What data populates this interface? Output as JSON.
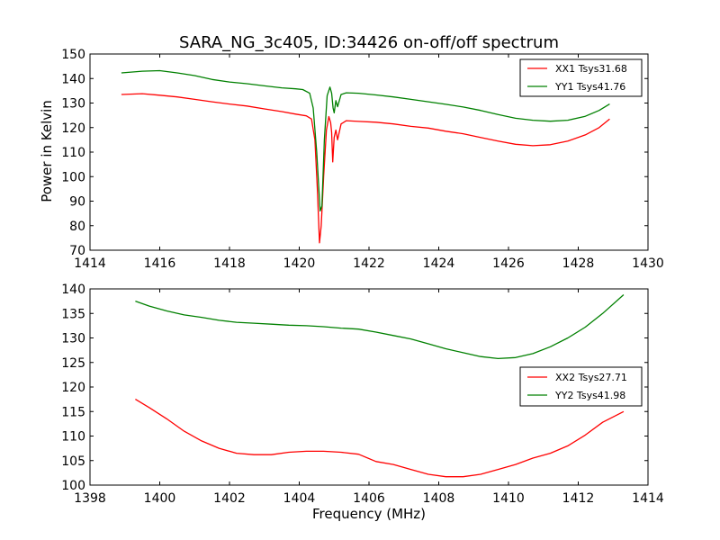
{
  "chart_data": [
    {
      "type": "line",
      "title": "SARA_NG_3c405, ID:34426 on-off/off spectrum",
      "xlabel": "",
      "ylabel": "Power in Kelvin",
      "xlim": [
        1414,
        1430
      ],
      "ylim": [
        70,
        150
      ],
      "xticks": [
        "1414",
        "1416",
        "1418",
        "1420",
        "1422",
        "1424",
        "1426",
        "1428",
        "1430"
      ],
      "yticks": [
        "70",
        "80",
        "90",
        "100",
        "110",
        "120",
        "130",
        "140",
        "150"
      ],
      "legend_position": "top-right",
      "series": [
        {
          "name": "XX1 Tsys31.68",
          "color": "#ff0000",
          "points": [
            [
              1414.9,
              133.5
            ],
            [
              1415.5,
              133.8
            ],
            [
              1416.0,
              133.2
            ],
            [
              1416.5,
              132.5
            ],
            [
              1417.0,
              131.5
            ],
            [
              1417.5,
              130.5
            ],
            [
              1418.0,
              129.6
            ],
            [
              1418.5,
              128.8
            ],
            [
              1419.0,
              127.6
            ],
            [
              1419.5,
              126.5
            ],
            [
              1419.9,
              125.5
            ],
            [
              1420.2,
              124.8
            ],
            [
              1420.35,
              123.5
            ],
            [
              1420.45,
              115
            ],
            [
              1420.52,
              95
            ],
            [
              1420.58,
              73
            ],
            [
              1420.63,
              80
            ],
            [
              1420.7,
              100
            ],
            [
              1420.78,
              119
            ],
            [
              1420.85,
              124.5
            ],
            [
              1420.9,
              122
            ],
            [
              1420.93,
              118
            ],
            [
              1420.96,
              106
            ],
            [
              1421.0,
              116
            ],
            [
              1421.05,
              119
            ],
            [
              1421.1,
              115
            ],
            [
              1421.2,
              121.5
            ],
            [
              1421.35,
              122.8
            ],
            [
              1421.7,
              122.5
            ],
            [
              1422.2,
              122.2
            ],
            [
              1422.7,
              121.5
            ],
            [
              1423.2,
              120.5
            ],
            [
              1423.7,
              119.8
            ],
            [
              1424.2,
              118.5
            ],
            [
              1424.7,
              117.5
            ],
            [
              1425.2,
              116.0
            ],
            [
              1425.7,
              114.5
            ],
            [
              1426.2,
              113.2
            ],
            [
              1426.7,
              112.6
            ],
            [
              1427.2,
              113.0
            ],
            [
              1427.7,
              114.5
            ],
            [
              1428.2,
              117.0
            ],
            [
              1428.6,
              120.0
            ],
            [
              1428.9,
              123.5
            ]
          ]
        },
        {
          "name": "YY1 Tsys41.76",
          "color": "#008000",
          "points": [
            [
              1414.9,
              142.3
            ],
            [
              1415.5,
              143.0
            ],
            [
              1416.0,
              143.2
            ],
            [
              1416.5,
              142.3
            ],
            [
              1417.0,
              141.2
            ],
            [
              1417.5,
              139.6
            ],
            [
              1418.0,
              138.6
            ],
            [
              1418.5,
              137.9
            ],
            [
              1419.0,
              137.0
            ],
            [
              1419.5,
              136.2
            ],
            [
              1419.9,
              135.8
            ],
            [
              1420.1,
              135.5
            ],
            [
              1420.3,
              134.0
            ],
            [
              1420.4,
              128
            ],
            [
              1420.5,
              110
            ],
            [
              1420.6,
              86
            ],
            [
              1420.65,
              88
            ],
            [
              1420.72,
              115
            ],
            [
              1420.8,
              133
            ],
            [
              1420.88,
              136.5
            ],
            [
              1420.93,
              134
            ],
            [
              1420.97,
              128
            ],
            [
              1421.0,
              126
            ],
            [
              1421.05,
              131
            ],
            [
              1421.1,
              128.5
            ],
            [
              1421.2,
              133.5
            ],
            [
              1421.35,
              134.2
            ],
            [
              1421.7,
              134.0
            ],
            [
              1422.2,
              133.3
            ],
            [
              1422.7,
              132.5
            ],
            [
              1423.2,
              131.5
            ],
            [
              1423.7,
              130.5
            ],
            [
              1424.2,
              129.5
            ],
            [
              1424.7,
              128.4
            ],
            [
              1425.2,
              127.0
            ],
            [
              1425.7,
              125.3
            ],
            [
              1426.2,
              123.8
            ],
            [
              1426.7,
              123.0
            ],
            [
              1427.2,
              122.6
            ],
            [
              1427.7,
              123.0
            ],
            [
              1428.2,
              124.6
            ],
            [
              1428.6,
              127.0
            ],
            [
              1428.9,
              129.6
            ]
          ]
        }
      ]
    },
    {
      "type": "line",
      "title": "",
      "xlabel": "Frequency (MHz)",
      "ylabel": "",
      "xlim": [
        1398,
        1414
      ],
      "ylim": [
        100,
        140
      ],
      "xticks": [
        "1398",
        "1400",
        "1402",
        "1404",
        "1406",
        "1408",
        "1410",
        "1412",
        "1414"
      ],
      "yticks": [
        "100",
        "105",
        "110",
        "115",
        "120",
        "125",
        "130",
        "135",
        "140"
      ],
      "legend_position": "center-right",
      "series": [
        {
          "name": "XX2 Tsys27.71",
          "color": "#ff0000",
          "points": [
            [
              1399.3,
              117.5
            ],
            [
              1399.7,
              115.8
            ],
            [
              1400.2,
              113.5
            ],
            [
              1400.7,
              111.0
            ],
            [
              1401.2,
              109.0
            ],
            [
              1401.7,
              107.5
            ],
            [
              1402.2,
              106.5
            ],
            [
              1402.7,
              106.2
            ],
            [
              1403.2,
              106.2
            ],
            [
              1403.7,
              106.7
            ],
            [
              1404.2,
              106.9
            ],
            [
              1404.7,
              106.9
            ],
            [
              1405.2,
              106.7
            ],
            [
              1405.7,
              106.3
            ],
            [
              1406.2,
              104.8
            ],
            [
              1406.7,
              104.2
            ],
            [
              1407.2,
              103.2
            ],
            [
              1407.7,
              102.2
            ],
            [
              1408.2,
              101.7
            ],
            [
              1408.7,
              101.7
            ],
            [
              1409.2,
              102.2
            ],
            [
              1409.7,
              103.2
            ],
            [
              1410.2,
              104.2
            ],
            [
              1410.7,
              105.5
            ],
            [
              1411.2,
              106.5
            ],
            [
              1411.7,
              108.0
            ],
            [
              1412.2,
              110.2
            ],
            [
              1412.7,
              112.8
            ],
            [
              1413.3,
              115.0
            ]
          ]
        },
        {
          "name": "YY2 Tsys41.98",
          "color": "#008000",
          "points": [
            [
              1399.3,
              137.5
            ],
            [
              1399.7,
              136.5
            ],
            [
              1400.2,
              135.5
            ],
            [
              1400.7,
              134.7
            ],
            [
              1401.2,
              134.2
            ],
            [
              1401.7,
              133.6
            ],
            [
              1402.2,
              133.2
            ],
            [
              1402.7,
              133.0
            ],
            [
              1403.2,
              132.8
            ],
            [
              1403.7,
              132.6
            ],
            [
              1404.2,
              132.5
            ],
            [
              1404.7,
              132.3
            ],
            [
              1405.2,
              132.0
            ],
            [
              1405.7,
              131.8
            ],
            [
              1406.2,
              131.2
            ],
            [
              1406.7,
              130.5
            ],
            [
              1407.2,
              129.8
            ],
            [
              1407.7,
              128.8
            ],
            [
              1408.2,
              127.8
            ],
            [
              1408.7,
              127.0
            ],
            [
              1409.2,
              126.2
            ],
            [
              1409.7,
              125.8
            ],
            [
              1410.2,
              126.0
            ],
            [
              1410.7,
              126.8
            ],
            [
              1411.2,
              128.2
            ],
            [
              1411.7,
              130.0
            ],
            [
              1412.2,
              132.2
            ],
            [
              1412.7,
              135.0
            ],
            [
              1413.3,
              138.8
            ]
          ]
        }
      ]
    }
  ]
}
